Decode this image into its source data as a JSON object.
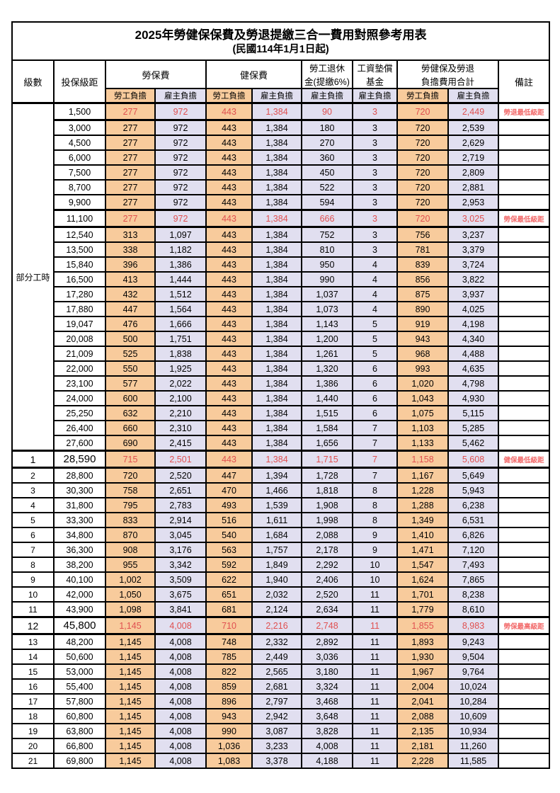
{
  "title": "2025年勞健保保費及勞退提繳三合一費用對照參考用表",
  "subtitle": "(民國114年1月1日起)",
  "colors": {
    "employee_column_bg": "#F8CB9C",
    "employer_column_bg": "#E1DFF0",
    "highlight_number_text": "#E05050",
    "remark_text": "#F26A6A",
    "grid_border": "#000000",
    "page_bg": "#FFFFFF"
  },
  "header": {
    "level": "級數",
    "bracket": "投保級距",
    "labor_group": "勞保費",
    "health_group": "健保費",
    "pension_line1": "勞工退休",
    "pension_line2": "金(提繳6%)",
    "wage_fund_line1": "工資墊償",
    "wage_fund_line2": "基金",
    "total_line1": "勞健保及勞退",
    "total_line2": "負擔費用合計",
    "remark": "備註",
    "employee": "勞工負擔",
    "employer": "雇主負擔"
  },
  "section_label": "部分工時",
  "rows": [
    {
      "level": "",
      "bracket": "1,500",
      "labor_emp": "277",
      "labor_er": "972",
      "health_emp": "443",
      "health_er": "1,384",
      "pension_er": "90",
      "fund_er": "3",
      "total_emp": "720",
      "total_er": "2,449",
      "remark": "勞退最低級距",
      "hl": true,
      "big": false
    },
    {
      "level": "",
      "bracket": "3,000",
      "labor_emp": "277",
      "labor_er": "972",
      "health_emp": "443",
      "health_er": "1,384",
      "pension_er": "180",
      "fund_er": "3",
      "total_emp": "720",
      "total_er": "2,539",
      "remark": "",
      "hl": false,
      "big": false
    },
    {
      "level": "",
      "bracket": "4,500",
      "labor_emp": "277",
      "labor_er": "972",
      "health_emp": "443",
      "health_er": "1,384",
      "pension_er": "270",
      "fund_er": "3",
      "total_emp": "720",
      "total_er": "2,629",
      "remark": "",
      "hl": false,
      "big": false
    },
    {
      "level": "",
      "bracket": "6,000",
      "labor_emp": "277",
      "labor_er": "972",
      "health_emp": "443",
      "health_er": "1,384",
      "pension_er": "360",
      "fund_er": "3",
      "total_emp": "720",
      "total_er": "2,719",
      "remark": "",
      "hl": false,
      "big": false
    },
    {
      "level": "",
      "bracket": "7,500",
      "labor_emp": "277",
      "labor_er": "972",
      "health_emp": "443",
      "health_er": "1,384",
      "pension_er": "450",
      "fund_er": "3",
      "total_emp": "720",
      "total_er": "2,809",
      "remark": "",
      "hl": false,
      "big": false
    },
    {
      "level": "",
      "bracket": "8,700",
      "labor_emp": "277",
      "labor_er": "972",
      "health_emp": "443",
      "health_er": "1,384",
      "pension_er": "522",
      "fund_er": "3",
      "total_emp": "720",
      "total_er": "2,881",
      "remark": "",
      "hl": false,
      "big": false
    },
    {
      "level": "",
      "bracket": "9,900",
      "labor_emp": "277",
      "labor_er": "972",
      "health_emp": "443",
      "health_er": "1,384",
      "pension_er": "594",
      "fund_er": "3",
      "total_emp": "720",
      "total_er": "2,953",
      "remark": "",
      "hl": false,
      "big": false
    },
    {
      "level": "",
      "bracket": "11,100",
      "labor_emp": "277",
      "labor_er": "972",
      "health_emp": "443",
      "health_er": "1,384",
      "pension_er": "666",
      "fund_er": "3",
      "total_emp": "720",
      "total_er": "3,025",
      "remark": "勞保最低級距",
      "hl": true,
      "big": false
    },
    {
      "level": "",
      "bracket": "12,540",
      "labor_emp": "313",
      "labor_er": "1,097",
      "health_emp": "443",
      "health_er": "1,384",
      "pension_er": "752",
      "fund_er": "3",
      "total_emp": "756",
      "total_er": "3,237",
      "remark": "",
      "hl": false,
      "big": false
    },
    {
      "level": "",
      "bracket": "13,500",
      "labor_emp": "338",
      "labor_er": "1,182",
      "health_emp": "443",
      "health_er": "1,384",
      "pension_er": "810",
      "fund_er": "3",
      "total_emp": "781",
      "total_er": "3,379",
      "remark": "",
      "hl": false,
      "big": false
    },
    {
      "level": "",
      "bracket": "15,840",
      "labor_emp": "396",
      "labor_er": "1,386",
      "health_emp": "443",
      "health_er": "1,384",
      "pension_er": "950",
      "fund_er": "4",
      "total_emp": "839",
      "total_er": "3,724",
      "remark": "",
      "hl": false,
      "big": false
    },
    {
      "level": "",
      "bracket": "16,500",
      "labor_emp": "413",
      "labor_er": "1,444",
      "health_emp": "443",
      "health_er": "1,384",
      "pension_er": "990",
      "fund_er": "4",
      "total_emp": "856",
      "total_er": "3,822",
      "remark": "",
      "hl": false,
      "big": false
    },
    {
      "level": "",
      "bracket": "17,280",
      "labor_emp": "432",
      "labor_er": "1,512",
      "health_emp": "443",
      "health_er": "1,384",
      "pension_er": "1,037",
      "fund_er": "4",
      "total_emp": "875",
      "total_er": "3,937",
      "remark": "",
      "hl": false,
      "big": false
    },
    {
      "level": "",
      "bracket": "17,880",
      "labor_emp": "447",
      "labor_er": "1,564",
      "health_emp": "443",
      "health_er": "1,384",
      "pension_er": "1,073",
      "fund_er": "4",
      "total_emp": "890",
      "total_er": "4,025",
      "remark": "",
      "hl": false,
      "big": false
    },
    {
      "level": "",
      "bracket": "19,047",
      "labor_emp": "476",
      "labor_er": "1,666",
      "health_emp": "443",
      "health_er": "1,384",
      "pension_er": "1,143",
      "fund_er": "5",
      "total_emp": "919",
      "total_er": "4,198",
      "remark": "",
      "hl": false,
      "big": false
    },
    {
      "level": "",
      "bracket": "20,008",
      "labor_emp": "500",
      "labor_er": "1,751",
      "health_emp": "443",
      "health_er": "1,384",
      "pension_er": "1,200",
      "fund_er": "5",
      "total_emp": "943",
      "total_er": "4,340",
      "remark": "",
      "hl": false,
      "big": false
    },
    {
      "level": "",
      "bracket": "21,009",
      "labor_emp": "525",
      "labor_er": "1,838",
      "health_emp": "443",
      "health_er": "1,384",
      "pension_er": "1,261",
      "fund_er": "5",
      "total_emp": "968",
      "total_er": "4,488",
      "remark": "",
      "hl": false,
      "big": false
    },
    {
      "level": "",
      "bracket": "22,000",
      "labor_emp": "550",
      "labor_er": "1,925",
      "health_emp": "443",
      "health_er": "1,384",
      "pension_er": "1,320",
      "fund_er": "6",
      "total_emp": "993",
      "total_er": "4,635",
      "remark": "",
      "hl": false,
      "big": false
    },
    {
      "level": "",
      "bracket": "23,100",
      "labor_emp": "577",
      "labor_er": "2,022",
      "health_emp": "443",
      "health_er": "1,384",
      "pension_er": "1,386",
      "fund_er": "6",
      "total_emp": "1,020",
      "total_er": "4,798",
      "remark": "",
      "hl": false,
      "big": false
    },
    {
      "level": "",
      "bracket": "24,000",
      "labor_emp": "600",
      "labor_er": "2,100",
      "health_emp": "443",
      "health_er": "1,384",
      "pension_er": "1,440",
      "fund_er": "6",
      "total_emp": "1,043",
      "total_er": "4,930",
      "remark": "",
      "hl": false,
      "big": false
    },
    {
      "level": "",
      "bracket": "25,250",
      "labor_emp": "632",
      "labor_er": "2,210",
      "health_emp": "443",
      "health_er": "1,384",
      "pension_er": "1,515",
      "fund_er": "6",
      "total_emp": "1,075",
      "total_er": "5,115",
      "remark": "",
      "hl": false,
      "big": false
    },
    {
      "level": "",
      "bracket": "26,400",
      "labor_emp": "660",
      "labor_er": "2,310",
      "health_emp": "443",
      "health_er": "1,384",
      "pension_er": "1,584",
      "fund_er": "7",
      "total_emp": "1,103",
      "total_er": "5,285",
      "remark": "",
      "hl": false,
      "big": false
    },
    {
      "level": "",
      "bracket": "27,600",
      "labor_emp": "690",
      "labor_er": "2,415",
      "health_emp": "443",
      "health_er": "1,384",
      "pension_er": "1,656",
      "fund_er": "7",
      "total_emp": "1,133",
      "total_er": "5,462",
      "remark": "",
      "hl": false,
      "big": false
    },
    {
      "level": "1",
      "bracket": "28,590",
      "labor_emp": "715",
      "labor_er": "2,501",
      "health_emp": "443",
      "health_er": "1,384",
      "pension_er": "1,715",
      "fund_er": "7",
      "total_emp": "1,158",
      "total_er": "5,608",
      "remark": "健保最低級距",
      "hl": true,
      "big": true
    },
    {
      "level": "2",
      "bracket": "28,800",
      "labor_emp": "720",
      "labor_er": "2,520",
      "health_emp": "447",
      "health_er": "1,394",
      "pension_er": "1,728",
      "fund_er": "7",
      "total_emp": "1,167",
      "total_er": "5,649",
      "remark": "",
      "hl": false,
      "big": false
    },
    {
      "level": "3",
      "bracket": "30,300",
      "labor_emp": "758",
      "labor_er": "2,651",
      "health_emp": "470",
      "health_er": "1,466",
      "pension_er": "1,818",
      "fund_er": "8",
      "total_emp": "1,228",
      "total_er": "5,943",
      "remark": "",
      "hl": false,
      "big": false
    },
    {
      "level": "4",
      "bracket": "31,800",
      "labor_emp": "795",
      "labor_er": "2,783",
      "health_emp": "493",
      "health_er": "1,539",
      "pension_er": "1,908",
      "fund_er": "8",
      "total_emp": "1,288",
      "total_er": "6,238",
      "remark": "",
      "hl": false,
      "big": false
    },
    {
      "level": "5",
      "bracket": "33,300",
      "labor_emp": "833",
      "labor_er": "2,914",
      "health_emp": "516",
      "health_er": "1,611",
      "pension_er": "1,998",
      "fund_er": "8",
      "total_emp": "1,349",
      "total_er": "6,531",
      "remark": "",
      "hl": false,
      "big": false
    },
    {
      "level": "6",
      "bracket": "34,800",
      "labor_emp": "870",
      "labor_er": "3,045",
      "health_emp": "540",
      "health_er": "1,684",
      "pension_er": "2,088",
      "fund_er": "9",
      "total_emp": "1,410",
      "total_er": "6,826",
      "remark": "",
      "hl": false,
      "big": false
    },
    {
      "level": "7",
      "bracket": "36,300",
      "labor_emp": "908",
      "labor_er": "3,176",
      "health_emp": "563",
      "health_er": "1,757",
      "pension_er": "2,178",
      "fund_er": "9",
      "total_emp": "1,471",
      "total_er": "7,120",
      "remark": "",
      "hl": false,
      "big": false
    },
    {
      "level": "8",
      "bracket": "38,200",
      "labor_emp": "955",
      "labor_er": "3,342",
      "health_emp": "592",
      "health_er": "1,849",
      "pension_er": "2,292",
      "fund_er": "10",
      "total_emp": "1,547",
      "total_er": "7,493",
      "remark": "",
      "hl": false,
      "big": false
    },
    {
      "level": "9",
      "bracket": "40,100",
      "labor_emp": "1,002",
      "labor_er": "3,509",
      "health_emp": "622",
      "health_er": "1,940",
      "pension_er": "2,406",
      "fund_er": "10",
      "total_emp": "1,624",
      "total_er": "7,865",
      "remark": "",
      "hl": false,
      "big": false
    },
    {
      "level": "10",
      "bracket": "42,000",
      "labor_emp": "1,050",
      "labor_er": "3,675",
      "health_emp": "651",
      "health_er": "2,032",
      "pension_er": "2,520",
      "fund_er": "11",
      "total_emp": "1,701",
      "total_er": "8,238",
      "remark": "",
      "hl": false,
      "big": false
    },
    {
      "level": "11",
      "bracket": "43,900",
      "labor_emp": "1,098",
      "labor_er": "3,841",
      "health_emp": "681",
      "health_er": "2,124",
      "pension_er": "2,634",
      "fund_er": "11",
      "total_emp": "1,779",
      "total_er": "8,610",
      "remark": "",
      "hl": false,
      "big": false
    },
    {
      "level": "12",
      "bracket": "45,800",
      "labor_emp": "1,145",
      "labor_er": "4,008",
      "health_emp": "710",
      "health_er": "2,216",
      "pension_er": "2,748",
      "fund_er": "11",
      "total_emp": "1,855",
      "total_er": "8,983",
      "remark": "勞保最高級距",
      "hl": true,
      "big": true
    },
    {
      "level": "13",
      "bracket": "48,200",
      "labor_emp": "1,145",
      "labor_er": "4,008",
      "health_emp": "748",
      "health_er": "2,332",
      "pension_er": "2,892",
      "fund_er": "11",
      "total_emp": "1,893",
      "total_er": "9,243",
      "remark": "",
      "hl": false,
      "big": false
    },
    {
      "level": "14",
      "bracket": "50,600",
      "labor_emp": "1,145",
      "labor_er": "4,008",
      "health_emp": "785",
      "health_er": "2,449",
      "pension_er": "3,036",
      "fund_er": "11",
      "total_emp": "1,930",
      "total_er": "9,504",
      "remark": "",
      "hl": false,
      "big": false
    },
    {
      "level": "15",
      "bracket": "53,000",
      "labor_emp": "1,145",
      "labor_er": "4,008",
      "health_emp": "822",
      "health_er": "2,565",
      "pension_er": "3,180",
      "fund_er": "11",
      "total_emp": "1,967",
      "total_er": "9,764",
      "remark": "",
      "hl": false,
      "big": false
    },
    {
      "level": "16",
      "bracket": "55,400",
      "labor_emp": "1,145",
      "labor_er": "4,008",
      "health_emp": "859",
      "health_er": "2,681",
      "pension_er": "3,324",
      "fund_er": "11",
      "total_emp": "2,004",
      "total_er": "10,024",
      "remark": "",
      "hl": false,
      "big": false
    },
    {
      "level": "17",
      "bracket": "57,800",
      "labor_emp": "1,145",
      "labor_er": "4,008",
      "health_emp": "896",
      "health_er": "2,797",
      "pension_er": "3,468",
      "fund_er": "11",
      "total_emp": "2,041",
      "total_er": "10,284",
      "remark": "",
      "hl": false,
      "big": false
    },
    {
      "level": "18",
      "bracket": "60,800",
      "labor_emp": "1,145",
      "labor_er": "4,008",
      "health_emp": "943",
      "health_er": "2,942",
      "pension_er": "3,648",
      "fund_er": "11",
      "total_emp": "2,088",
      "total_er": "10,609",
      "remark": "",
      "hl": false,
      "big": false
    },
    {
      "level": "19",
      "bracket": "63,800",
      "labor_emp": "1,145",
      "labor_er": "4,008",
      "health_emp": "990",
      "health_er": "3,087",
      "pension_er": "3,828",
      "fund_er": "11",
      "total_emp": "2,135",
      "total_er": "10,934",
      "remark": "",
      "hl": false,
      "big": false
    },
    {
      "level": "20",
      "bracket": "66,800",
      "labor_emp": "1,145",
      "labor_er": "4,008",
      "health_emp": "1,036",
      "health_er": "3,233",
      "pension_er": "4,008",
      "fund_er": "11",
      "total_emp": "2,181",
      "total_er": "11,260",
      "remark": "",
      "hl": false,
      "big": false
    },
    {
      "level": "21",
      "bracket": "69,800",
      "labor_emp": "1,145",
      "labor_er": "4,008",
      "health_emp": "1,083",
      "health_er": "3,378",
      "pension_er": "4,188",
      "fund_er": "11",
      "total_emp": "2,228",
      "total_er": "11,585",
      "remark": "",
      "hl": false,
      "big": false
    }
  ]
}
